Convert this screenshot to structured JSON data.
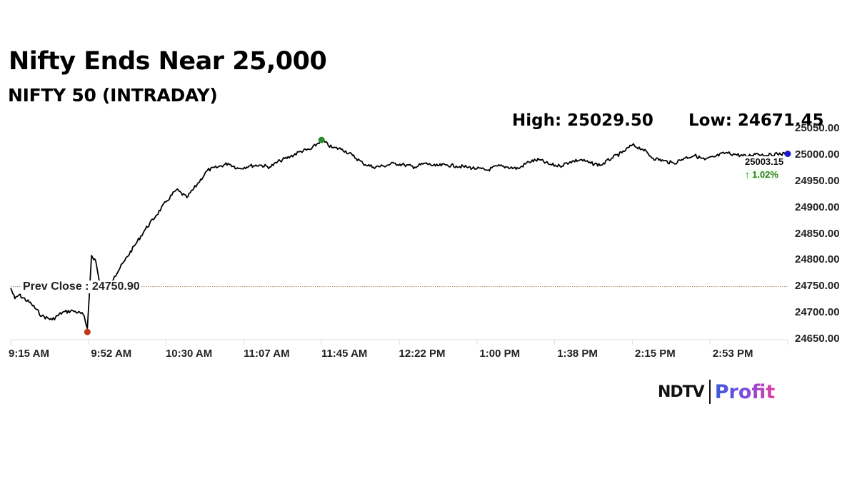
{
  "header": {
    "title": "Nifty Ends Near 25,000",
    "subtitle": "NIFTY 50 (INTRADAY)",
    "high_label": "High: 25029.50",
    "low_label": "Low: 24671.45"
  },
  "annotations": {
    "prev_close_label": "Prev Close : 24750.90",
    "last_price": "25003.15",
    "change": "↑ 1.02%",
    "change_color": "#2e7d1a"
  },
  "logo": {
    "brand": "NDTV",
    "product": "Profit"
  },
  "colors": {
    "line": "#000000",
    "prev_close_line": "#b08a5a",
    "high_marker": "#2e8b2e",
    "low_marker": "#c0391b",
    "last_marker": "#1a1ad0",
    "grid": "#dddddd"
  },
  "chart_data": {
    "type": "line",
    "title": "NIFTY 50 (INTRADAY)",
    "xlabel": "",
    "ylabel": "",
    "ylim": [
      24650,
      25050
    ],
    "y_ticks": [
      "25050.00",
      "25000.00",
      "24950.00",
      "24900.00",
      "24850.00",
      "24800.00",
      "24750.00",
      "24700.00",
      "24650.00"
    ],
    "x_ticks": [
      "9:15 AM",
      "9:52 AM",
      "10:30 AM",
      "11:07 AM",
      "11:45 AM",
      "12:22 PM",
      "1:00 PM",
      "1:38 PM",
      "2:15 PM",
      "2:53 PM"
    ],
    "grid": false,
    "legend": null,
    "reference_lines": [
      {
        "name": "Prev Close",
        "value": 24750.9
      }
    ],
    "high": 25029.5,
    "low": 24671.45,
    "last": 25003.15,
    "change_pct": 1.02,
    "series": [
      {
        "name": "NIFTY 50",
        "x": [
          "9:15",
          "9:17",
          "9:19",
          "9:25",
          "9:30",
          "9:35",
          "9:40",
          "9:45",
          "9:50",
          "9:52",
          "9:53",
          "9:54",
          "9:56",
          "9:58",
          "10:00",
          "10:05",
          "10:10",
          "10:15",
          "10:20",
          "10:25",
          "10:30",
          "10:35",
          "10:40",
          "10:45",
          "10:50",
          "10:55",
          "11:00",
          "11:05",
          "11:10",
          "11:15",
          "11:20",
          "11:25",
          "11:30",
          "11:35",
          "11:40",
          "11:45",
          "11:50",
          "11:55",
          "12:00",
          "12:05",
          "12:10",
          "12:15",
          "12:20",
          "12:25",
          "12:30",
          "12:35",
          "12:40",
          "12:45",
          "12:50",
          "12:55",
          "13:00",
          "13:05",
          "13:10",
          "13:15",
          "13:20",
          "13:25",
          "13:30",
          "13:35",
          "13:40",
          "13:45",
          "13:50",
          "13:55",
          "14:00",
          "14:05",
          "14:10",
          "14:15",
          "14:20",
          "14:25",
          "14:30",
          "14:35",
          "14:40",
          "14:45",
          "14:50",
          "14:55",
          "15:00",
          "15:05",
          "15:10",
          "15:15",
          "15:20",
          "15:25",
          "15:30"
        ],
        "values": [
          24748,
          24728,
          24735,
          24718,
          24695,
          24688,
          24702,
          24705,
          24698,
          24671.45,
          24740,
          24810,
          24800,
          24755,
          24740,
          24770,
          24800,
          24830,
          24860,
          24885,
          24912,
          24935,
          24920,
          24945,
          24972,
          24978,
          24985,
          24975,
          24980,
          24982,
          24978,
          24990,
          24998,
          25008,
          25012,
          25029.5,
          25015,
          25012,
          25000,
          24985,
          24978,
          24980,
          24985,
          24982,
          24978,
          24985,
          24980,
          24982,
          24980,
          24978,
          24975,
          24972,
          24980,
          24978,
          24975,
          24988,
          24992,
          24983,
          24980,
          24988,
          24992,
          24985,
          24982,
          24995,
          25005,
          25020,
          25012,
          24995,
          24990,
          24985,
          24995,
          25000,
          24992,
          24998,
          25005,
          25002,
          24998,
          25004,
          25000,
          25003,
          25003.15
        ]
      }
    ]
  }
}
